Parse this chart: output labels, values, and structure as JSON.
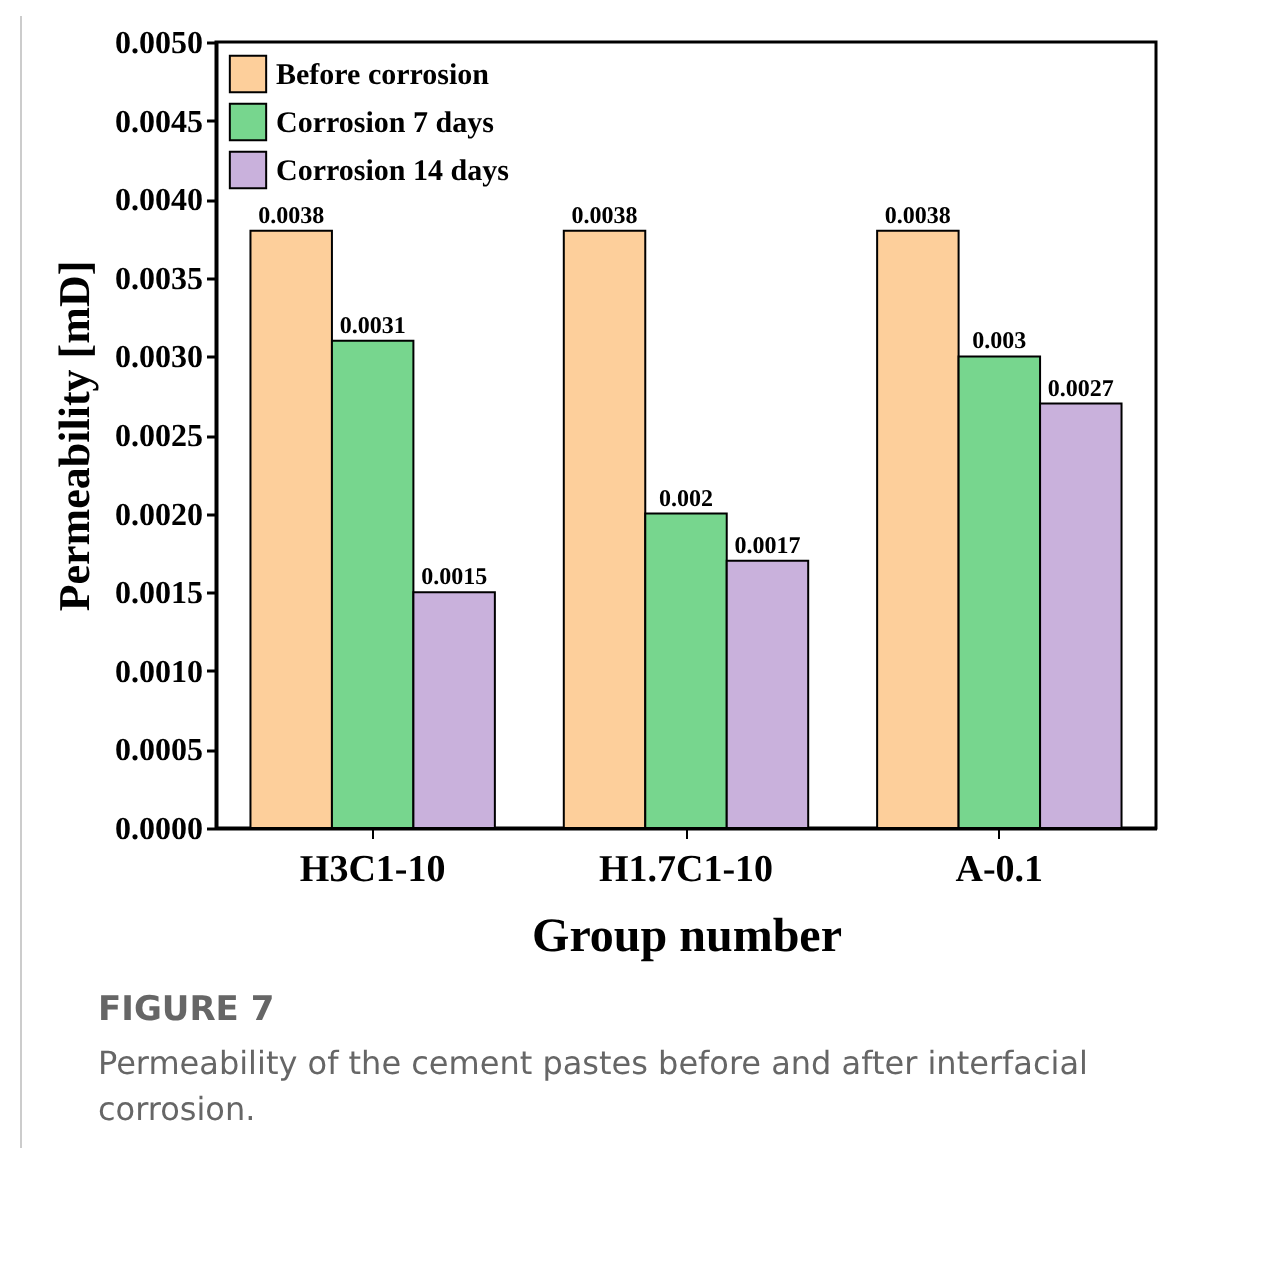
{
  "chart_data": {
    "type": "bar",
    "xlabel": "Group number",
    "ylabel": "Permeability [mD]",
    "categories": [
      "H3C1-10",
      "H1.7C1-10",
      "A-0.1"
    ],
    "series": [
      {
        "name": "Before corrosion",
        "color": "#fdcf9b",
        "values": [
          0.0038,
          0.0038,
          0.0038
        ]
      },
      {
        "name": "Corrosion 7 days",
        "color": "#77d68e",
        "values": [
          0.0031,
          0.002,
          0.003
        ]
      },
      {
        "name": "Corrosion 14 days",
        "color": "#c9b1dc",
        "values": [
          0.0015,
          0.0017,
          0.0027
        ]
      }
    ],
    "ylim": [
      0,
      0.005
    ],
    "yticks": [
      {
        "value": 0,
        "label": "0.0000"
      },
      {
        "value": 0.0005,
        "label": "0.0005"
      },
      {
        "value": 0.001,
        "label": "0.0010"
      },
      {
        "value": 0.0015,
        "label": "0.0015"
      },
      {
        "value": 0.002,
        "label": "0.0020"
      },
      {
        "value": 0.0025,
        "label": "0.0025"
      },
      {
        "value": 0.003,
        "label": "0.0030"
      },
      {
        "value": 0.0035,
        "label": "0.0035"
      },
      {
        "value": 0.004,
        "label": "0.0040"
      },
      {
        "value": 0.0045,
        "label": "0.0045"
      },
      {
        "value": 0.005,
        "label": "0.0050"
      }
    ],
    "data_labels": true,
    "legend": "top left",
    "grid": false,
    "annotations": [
      "FIGURE 7",
      "Permeability of the cement pastes before and after interfacial corrosion."
    ]
  }
}
